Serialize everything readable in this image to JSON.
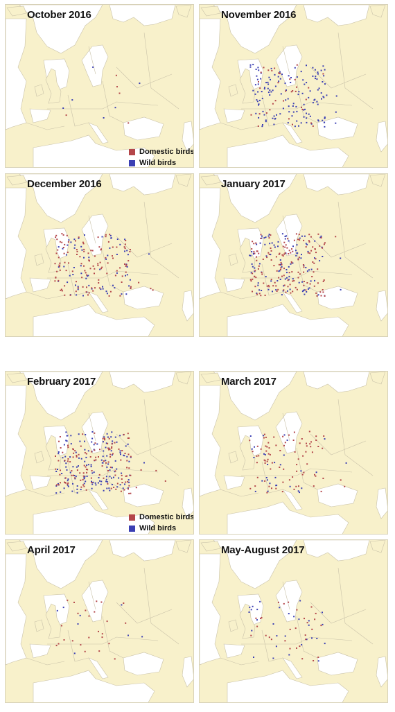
{
  "colors": {
    "land": "#f8f1cb",
    "sea": "#ffffff",
    "border": "#c9c2a9",
    "domestic": "#b4464a",
    "wild": "#3b3fb3"
  },
  "legend": {
    "domestic_label": "Domestic birds",
    "wild_label": "Wild birds"
  },
  "panels": [
    {
      "title": "October 2016",
      "wild": 6,
      "domestic": 5,
      "legend": true
    },
    {
      "title": "November 2016",
      "wild": 140,
      "domestic": 35,
      "legend": false
    },
    {
      "title": "December 2016",
      "wild": 70,
      "domestic": 120,
      "legend": false
    },
    {
      "title": "January 2017",
      "wild": 110,
      "domestic": 150,
      "legend": false
    },
    {
      "title": "February 2017",
      "wild": 150,
      "domestic": 130,
      "legend": true
    },
    {
      "title": "March 2017",
      "wild": 30,
      "domestic": 80,
      "legend": false
    },
    {
      "title": "April 2017",
      "wild": 8,
      "domestic": 25,
      "legend": false
    },
    {
      "title": "May-August 2017",
      "wild": 30,
      "domestic": 30,
      "legend": false
    }
  ]
}
